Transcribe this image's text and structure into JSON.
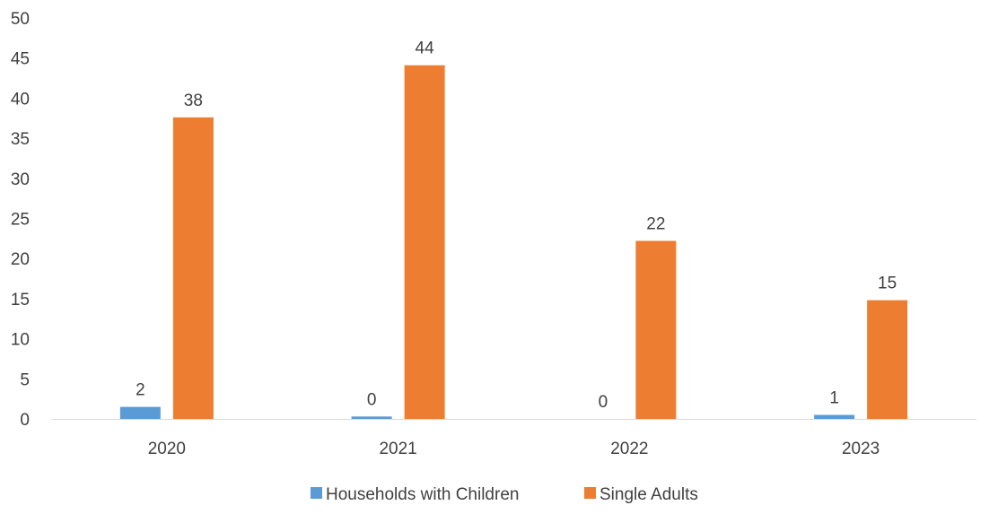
{
  "chart_data": {
    "type": "bar",
    "title": "",
    "xlabel": "",
    "ylabel": "",
    "ylim": [
      0,
      50
    ],
    "yticks": [
      0,
      5,
      10,
      15,
      20,
      25,
      30,
      35,
      40,
      45,
      50
    ],
    "categories": [
      "2020",
      "2021",
      "2022",
      "2023"
    ],
    "grid": false,
    "legend_position": "bottom",
    "series": [
      {
        "name": "Households with Children",
        "color": "#5B9BD5",
        "values": [
          1.5,
          0.3,
          0,
          0.5
        ],
        "data_labels": [
          "2",
          "0",
          "0",
          "1"
        ]
      },
      {
        "name": "Single Adults",
        "color": "#ED7D31",
        "values": [
          37.6,
          44.1,
          22.2,
          14.8
        ],
        "data_labels": [
          "38",
          "44",
          "22",
          "15"
        ]
      }
    ]
  }
}
